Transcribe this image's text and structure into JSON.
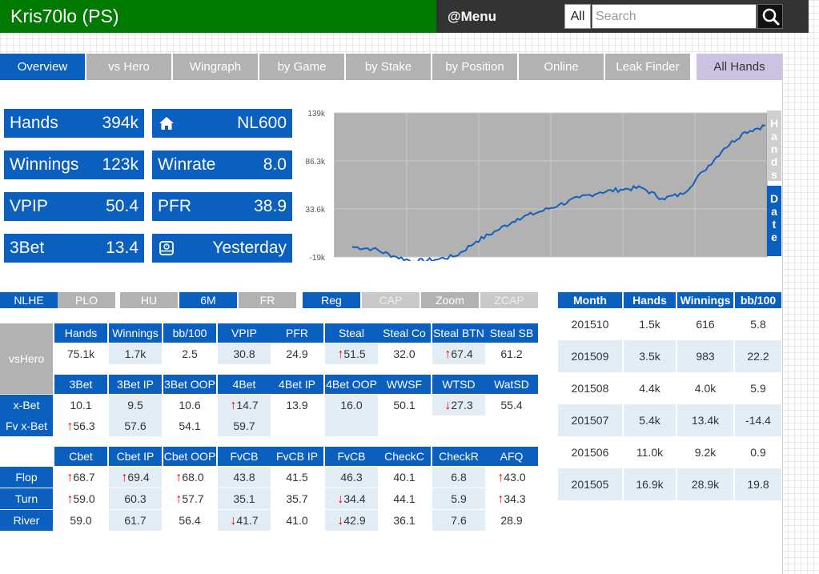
{
  "header": {
    "title": "Kris70lo (PS)",
    "menu_label": "@Menu",
    "scope_value": "All",
    "search_placeholder": "Search"
  },
  "tabs": [
    "Overview",
    "vs Hero",
    "Wingraph",
    "by Game",
    "by Stake",
    "by Position",
    "Online",
    "Leak Finder",
    "All Hands"
  ],
  "tiles": {
    "hands": {
      "label": "Hands",
      "value": "394k"
    },
    "stake": {
      "icon": "home-icon",
      "value": "NL600"
    },
    "winnings": {
      "label": "Winnings",
      "value": "123k"
    },
    "winrate": {
      "label": "Winrate",
      "value": "8.0"
    },
    "vpip": {
      "label": "VPIP",
      "value": "50.4"
    },
    "pfr": {
      "label": "PFR",
      "value": "38.9"
    },
    "threebet": {
      "label": "3Bet",
      "value": "13.4"
    },
    "lastseen": {
      "icon": "calendar-clock-icon",
      "value": "Yesterday"
    }
  },
  "chart_data": {
    "type": "line",
    "y_tick_labels": [
      "139k",
      "86.3k",
      "33.6k",
      "-19k"
    ],
    "ylim": [
      -19000,
      139000
    ],
    "x_axis": "hands",
    "x": [
      0,
      5,
      10,
      15,
      20,
      25,
      30,
      35,
      40,
      45,
      50,
      55,
      60,
      65,
      70,
      75,
      80,
      85,
      90,
      95,
      100
    ],
    "y": [
      -8000,
      -10000,
      -18000,
      -24000,
      -22000,
      -18000,
      -2000,
      10000,
      23000,
      30000,
      38000,
      46000,
      52000,
      55000,
      57000,
      45000,
      50000,
      75000,
      100000,
      118000,
      125000
    ],
    "series_color": "#1560bd",
    "plot_bg": "#b2b2b2",
    "grid": true,
    "side_buttons": [
      {
        "label": "Hands",
        "active": false
      },
      {
        "label": "Date",
        "active": true
      }
    ]
  },
  "filters": [
    {
      "label": "NLHE",
      "state": "active"
    },
    {
      "label": "PLO",
      "state": "off"
    },
    {
      "label": "HU",
      "state": "off"
    },
    {
      "label": "6M",
      "state": "active"
    },
    {
      "label": "FR",
      "state": "off"
    },
    {
      "label": "Reg",
      "state": "active"
    },
    {
      "label": "CAP",
      "state": "faint"
    },
    {
      "label": "Zoom",
      "state": "off"
    },
    {
      "label": "ZCAP",
      "state": "faint"
    }
  ],
  "stats": {
    "block1": {
      "row_label": "vsHero",
      "headers": [
        "Hands",
        "Winnings",
        "bb/100",
        "VPIP",
        "PFR",
        "Steal",
        "Steal Co",
        "Steal BTN",
        "Steal SB"
      ],
      "values": [
        "75.1k",
        "1.7k",
        "2.5",
        "30.8",
        "24.9",
        "51.5",
        "32.0",
        "67.4",
        "61.2"
      ],
      "arrows": [
        "",
        "",
        "",
        "",
        "",
        "up",
        "",
        "up",
        ""
      ]
    },
    "block2": {
      "headers": [
        "3Bet",
        "3Bet IP",
        "3Bet OOP",
        "4Bet",
        "4Bet IP",
        "4Bet OOP",
        "WWSF",
        "WTSD",
        "WatSD"
      ],
      "rows": [
        {
          "label": "x-Bet",
          "values": [
            "10.1",
            "9.5",
            "10.6",
            "14.7",
            "13.9",
            "16.0",
            "50.1",
            "27.3",
            "55.4"
          ],
          "arrows": [
            "",
            "",
            "",
            "up",
            "",
            "",
            "",
            "down",
            ""
          ]
        },
        {
          "label": "Fv x-Bet",
          "values": [
            "56.3",
            "57.6",
            "54.1",
            "59.7",
            "",
            "",
            "",
            "",
            ""
          ],
          "arrows": [
            "up",
            "",
            "",
            "",
            "",
            "",
            "",
            "",
            ""
          ]
        }
      ]
    },
    "block3": {
      "headers": [
        "Cbet",
        "Cbet IP",
        "Cbet OOP",
        "FvCB",
        "FvCB IP",
        "FvCB OOP",
        "CheckC",
        "CheckR",
        "AFQ"
      ],
      "rows": [
        {
          "label": "Flop",
          "values": [
            "68.7",
            "69.4",
            "68.0",
            "43.8",
            "41.5",
            "46.3",
            "40.1",
            "6.8",
            "43.0"
          ],
          "arrows": [
            "up",
            "up",
            "up",
            "",
            "",
            "",
            "",
            "",
            "up"
          ]
        },
        {
          "label": "Turn",
          "values": [
            "59.0",
            "60.3",
            "57.7",
            "35.1",
            "35.7",
            "34.4",
            "44.1",
            "5.9",
            "34.3"
          ],
          "arrows": [
            "up",
            "",
            "up",
            "",
            "",
            "down",
            "",
            "",
            "up"
          ]
        },
        {
          "label": "River",
          "values": [
            "59.0",
            "61.7",
            "56.4",
            "41.7",
            "41.0",
            "42.9",
            "36.1",
            "7.6",
            "28.9"
          ],
          "arrows": [
            "",
            "",
            "",
            "down",
            "",
            "down",
            "",
            "",
            ""
          ]
        }
      ]
    }
  },
  "monthly": {
    "headers": [
      "Month",
      "Hands",
      "Winnings",
      "bb/100"
    ],
    "rows": [
      [
        "201510",
        "1.5k",
        "616",
        "5.8"
      ],
      [
        "201509",
        "3.5k",
        "983",
        "22.2"
      ],
      [
        "201508",
        "4.4k",
        "4.0k",
        "5.9"
      ],
      [
        "201507",
        "5.4k",
        "13.4k",
        "-14.4"
      ],
      [
        "201506",
        "11.0k",
        "9.2k",
        "0.9"
      ],
      [
        "201505",
        "16.9k",
        "28.9k",
        "19.8"
      ]
    ]
  }
}
